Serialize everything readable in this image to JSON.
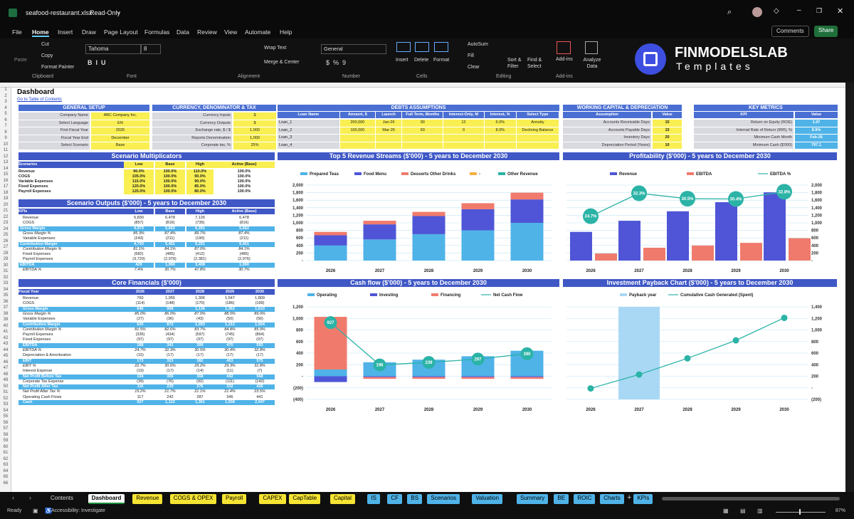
{
  "window": {
    "file": "seafood-restaurant.xlsx",
    "mode": "Read-Only"
  },
  "menu": [
    "File",
    "Home",
    "Insert",
    "Draw",
    "Page Layout",
    "Formulas",
    "Data",
    "Review",
    "View",
    "Automate",
    "Help"
  ],
  "comments_label": "Comments",
  "share_label": "Share",
  "ribbon": {
    "paste": "Paste",
    "cut": "Cut",
    "copy": "Copy",
    "format_painter": "Format Painter",
    "clipboard": "Clipboard",
    "font_name": "Tahoma",
    "font_size": "8",
    "font": "Font",
    "wrap": "Wrap Text",
    "merge": "Merge & Center",
    "alignment": "Alignment",
    "number_format": "General",
    "number": "Number",
    "insert": "Insert",
    "delete": "Delete",
    "format": "Format",
    "cells": "Cells",
    "autosum": "AutoSum",
    "fill": "Fill",
    "clear": "Clear",
    "sort": "Sort & Filter",
    "find": "Find & Select",
    "editing": "Editing",
    "addins": "Add-ins",
    "analyze": "Analyze Data",
    "brand1": "FINMODELSLAB",
    "brand2": "Templates"
  },
  "sheet": {
    "title": "Dashboard",
    "link": "Go to Table of Contents"
  },
  "general": {
    "title": "GENERAL SETUP",
    "rows": [
      [
        "Company Name",
        "ABC Company Inc."
      ],
      [
        "Select Language",
        "EN"
      ],
      [
        "First Fiscal Year",
        "2026"
      ],
      [
        "Fiscal Year End",
        "December"
      ],
      [
        "Select Scenario",
        "Base"
      ]
    ]
  },
  "currency": {
    "title": "CURRENCY, DENOMINATOR & TAX",
    "rows": [
      [
        "Currency Inputs",
        "$"
      ],
      [
        "Currency Outputs",
        "$"
      ],
      [
        "Exchange rate, $ / $",
        "1.000"
      ],
      [
        "Reports Denomination",
        "1,000"
      ],
      [
        "Corporate tax, %",
        "25%"
      ]
    ]
  },
  "debts": {
    "title": "DEBTS ASSUMPTIONS",
    "headers": [
      "Loan Name",
      "Amount, $",
      "Launch",
      "Full Term, Months",
      "Interest-Only, M",
      "Interest, %",
      "Select Type"
    ],
    "rows": [
      [
        "Loan_1",
        "200,000",
        "Jan-26",
        "90",
        "12",
        "6.0%",
        "Annuity"
      ],
      [
        "Loan_2",
        "100,000",
        "Mar-26",
        "60",
        "0",
        "8.0%",
        "Declining Balance"
      ],
      [
        "Loan_3",
        "",
        "",
        "",
        "",
        "",
        ""
      ],
      [
        "Loan_4",
        "",
        "",
        "",
        "",
        "",
        ""
      ]
    ]
  },
  "wc": {
    "title": "WORKING CAPITAL & DEPRECIATION",
    "headers": [
      "Assumption",
      "Value"
    ],
    "rows": [
      [
        "Accounts Receivable Days",
        "15"
      ],
      [
        "Accounts Payable Days",
        "15"
      ],
      [
        "Inventory Days",
        "20"
      ],
      [
        "Depreciation Period (Years)",
        "10"
      ]
    ]
  },
  "kpi": {
    "title": "KEY METRICS",
    "headers": [
      "KPI",
      "Value"
    ],
    "rows": [
      [
        "Return on Equity (ROE)",
        "1.97"
      ],
      [
        "Internal Rate of Return (IRR), %",
        "8.9%"
      ],
      [
        "Minimum Cash Month",
        "Feb-26"
      ],
      [
        "Minimum Cash ($'000)",
        "797.1"
      ]
    ]
  },
  "scen": {
    "title": "Scenario Multiplicators",
    "headers": [
      "Scenarios",
      "Low",
      "Base",
      "High",
      "Active (Base)"
    ],
    "rows": [
      [
        "Revenue",
        "90.0%",
        "100.0%",
        "110.0%",
        "100.0%"
      ],
      [
        "COGS",
        "105.0%",
        "100.0%",
        "90.0%",
        "100.0%"
      ],
      [
        "Variable Expenses",
        "115.0%",
        "100.0%",
        "90.0%",
        "100.0%"
      ],
      [
        "Fixed Expenses",
        "120.0%",
        "100.0%",
        "85.0%",
        "100.0%"
      ],
      [
        "Payroll Expenses",
        "125.0%",
        "100.0%",
        "80.0%",
        "100.0%"
      ]
    ]
  },
  "scenout": {
    "title": "Scenario Outputs ($'000) - 5 years to December 2030",
    "headers": [
      "KPIs",
      "Low",
      "Base",
      "High",
      "Active (Base)"
    ],
    "rows": [
      [
        "Revenue",
        "5,830",
        "6,478",
        "7,126",
        "6,478"
      ],
      [
        "COGS",
        "(857)",
        "(816)",
        "(735)",
        "(816)"
      ],
      [
        "Gross Margin",
        "4,973",
        "5,662",
        "6,391",
        "5,662"
      ],
      [
        "Gross Margin %",
        "85.3%",
        "87.4%",
        "89.7%",
        "87.4%"
      ],
      [
        "Variable Expenses",
        "(243)",
        "(211)",
        "(190)",
        "(211)"
      ],
      [
        "Contribution Margin",
        "4,730",
        "5,451",
        "6,201",
        "5,451"
      ],
      [
        "Contribution Margin %",
        "81.1%",
        "84.1%",
        "87.0%",
        "84.1%"
      ],
      [
        "Fixed Expenses",
        "(582)",
        "(485)",
        "(412)",
        "(485)"
      ],
      [
        "Payroll Expenses",
        "(3,720)",
        "(2,976)",
        "(2,381)",
        "(2,976)"
      ],
      [
        "EBITDA",
        "429",
        "1,990",
        "3,408",
        "1,990"
      ],
      [
        "EBITDA %",
        "7.4%",
        "30.7%",
        "47.8%",
        "30.7%"
      ]
    ]
  },
  "core": {
    "title": "Core Financials ($'000)",
    "headers": [
      "Fiscal Year",
      "2026",
      "2027",
      "2028",
      "2029",
      "2030"
    ],
    "rows": [
      [
        "Revenue",
        "760",
        "1,055",
        "1,306",
        "1,547",
        "1,809"
      ],
      [
        "COGS",
        "(114)",
        "(148)",
        "(170)",
        "(186)",
        "(199)"
      ],
      [
        "Gross Margin",
        "646",
        "908",
        "1,136",
        "1,362",
        "1,610"
      ],
      [
        "Gross Margin %",
        "85.0%",
        "86.0%",
        "87.0%",
        "88.0%",
        "89.0%"
      ],
      [
        "Variable Expenses",
        "(27)",
        "(36)",
        "(43)",
        "(50)",
        "(56)"
      ],
      [
        "Contribution Margin",
        "620",
        "872",
        "1,093",
        "1,312",
        "1,554"
      ],
      [
        "Contribution Margin %",
        "81.5%",
        "82.6%",
        "83.7%",
        "84.8%",
        "85.9%"
      ],
      [
        "Payroll Expenses",
        "(335)",
        "(434)",
        "(597)",
        "(745)",
        "(864)"
      ],
      [
        "Fixed Expenses",
        "(97)",
        "(97)",
        "(97)",
        "(97)",
        "(97)"
      ],
      [
        "EBITDA",
        "188",
        "341",
        "399",
        "470",
        "593"
      ],
      [
        "EBITDA %",
        "24.7%",
        "32.3%",
        "30.5%",
        "30.4%",
        "32.8%"
      ],
      [
        "Depreciation & Amortization",
        "(15)",
        "(17)",
        "(17)",
        "(17)",
        "(17)"
      ],
      [
        "EBIT",
        "173",
        "323",
        "382",
        "453",
        "575"
      ],
      [
        "EBIT %",
        "22.7%",
        "30.6%",
        "29.2%",
        "29.3%",
        "31.8%"
      ],
      [
        "Interest Expense",
        "(19)",
        "(17)",
        "(14)",
        "(11)",
        "(7)"
      ],
      [
        "Net Profit Before Tax",
        "154",
        "306",
        "368",
        "442",
        "568"
      ],
      [
        "Corporate Tax Expense",
        "(39)",
        "(76)",
        "(92)",
        "(111)",
        "(142)"
      ],
      [
        "Net Profit After Tax",
        "116",
        "229",
        "276",
        "332",
        "426"
      ],
      [
        "Net Profit After Tax %",
        "15.2%",
        "21.7%",
        "21.1%",
        "21.4%",
        "23.5%"
      ],
      [
        "Operating Cash Flows",
        "117",
        "242",
        "287",
        "346",
        "441"
      ],
      [
        "Cash",
        "927",
        "1,122",
        "1,361",
        "1,658",
        "2,047"
      ]
    ]
  },
  "chart_data": [
    {
      "type": "bar",
      "title": "Top 5 Revenue Streams ($'000) - 5 years to December 2030",
      "categories": [
        "2026",
        "2027",
        "2028",
        "2029",
        "2030"
      ],
      "series": [
        {
          "name": "Prepared Teas",
          "values": [
            400,
            560,
            700,
            800,
            1000
          ]
        },
        {
          "name": "Food Menu",
          "values": [
            270,
            400,
            480,
            560,
            620
          ]
        },
        {
          "name": "Desserts Other Drinks",
          "values": [
            90,
            95,
            110,
            160,
            180
          ]
        },
        {
          "name": "-",
          "values": [
            0,
            0,
            0,
            0,
            0
          ]
        },
        {
          "name": "Other Revenue",
          "values": [
            0,
            0,
            0,
            0,
            0
          ]
        }
      ],
      "ylim": [
        0,
        2000
      ],
      "yticks": [
        "2,000",
        "1,800",
        "1,600",
        "1,400",
        "1,200",
        "1,000",
        "800",
        "600",
        "400",
        "200",
        "-"
      ]
    },
    {
      "type": "bar",
      "title": "Profitability ($'000) - 5 years to December 2030",
      "categories": [
        "2026",
        "2027",
        "2028",
        "2029",
        "2030"
      ],
      "series": [
        {
          "name": "Revenue",
          "values": [
            760,
            1055,
            1306,
            1547,
            1809
          ]
        },
        {
          "name": "EBITDA",
          "values": [
            188,
            341,
            399,
            470,
            593
          ]
        },
        {
          "name": "EBITDA %",
          "values": [
            24.7,
            32.3,
            30.5,
            30.4,
            32.8
          ]
        }
      ],
      "labels": [
        "24.7%",
        "32.3%",
        "30.5%",
        "30.4%",
        "32.8%"
      ],
      "ylim": [
        0,
        2000
      ],
      "yticks": [
        "2,000",
        "1,800",
        "1,600",
        "1,400",
        "1,200",
        "1,000",
        "800",
        "600",
        "400",
        "200",
        "-"
      ]
    },
    {
      "type": "bar",
      "title": "Cash flow ($'000) - 5 years to December 2030",
      "categories": [
        "2026",
        "2027",
        "2028",
        "2029",
        "2030"
      ],
      "series": [
        {
          "name": "Operating",
          "values": [
            117,
            242,
            287,
            346,
            441
          ]
        },
        {
          "name": "Investing",
          "values": [
            -100,
            -15,
            -15,
            -15,
            -15
          ]
        },
        {
          "name": "Financing",
          "values": [
            910,
            -30,
            -30,
            -30,
            -30
          ]
        },
        {
          "name": "Net Cash Flow",
          "values": [
            927,
            196,
            239,
            297,
            390
          ]
        }
      ],
      "labels": [
        "927",
        "196",
        "239",
        "297",
        "390"
      ],
      "ylim": [
        -400,
        1200
      ],
      "yticks": [
        "1,200",
        "1,000",
        "800",
        "600",
        "400",
        "200",
        "-",
        "(200)",
        "(400)"
      ]
    },
    {
      "type": "line",
      "title": "Investment Payback Chart ($'000) - 5 years to December 2030",
      "categories": [
        "2026",
        "2027",
        "2028",
        "2029",
        "2030"
      ],
      "series": [
        {
          "name": "Payback year",
          "values": [
            0,
            1,
            0,
            0,
            0
          ]
        },
        {
          "name": "Cumulative Cash Generated (Spent)",
          "values": [
            -10,
            230,
            510,
            820,
            1210
          ]
        }
      ],
      "ylim": [
        -200,
        1400
      ],
      "yticks": [
        "1,400",
        "1,200",
        "1,000",
        "800",
        "600",
        "400",
        "200",
        "-",
        "(200)"
      ]
    }
  ],
  "tabs": [
    [
      "Contents",
      "w"
    ],
    [
      "Dashboard",
      "a"
    ],
    [
      "Revenue",
      "y"
    ],
    [
      "COGS & OPEX",
      "y"
    ],
    [
      "Payroll",
      "y"
    ],
    [
      "CAPEX",
      "y"
    ],
    [
      "CapTable",
      "y"
    ],
    [
      "Capital",
      "y"
    ],
    [
      "IS",
      "b"
    ],
    [
      "CF",
      "b"
    ],
    [
      "BS",
      "b"
    ],
    [
      "Scenarios",
      "b"
    ],
    [
      "Valuation",
      "b"
    ],
    [
      "Summary",
      "b"
    ],
    [
      "BE",
      "b"
    ],
    [
      "ROIC",
      "b"
    ],
    [
      "Charts",
      "b"
    ],
    [
      "KPIs",
      "b"
    ]
  ],
  "status": {
    "ready": "Ready",
    "accessibility": "Accessibility: Investigate",
    "zoom": "87%"
  },
  "colors": {
    "blue": "#4f55d6",
    "sky": "#4fb3e8",
    "salmon": "#f07b6c",
    "teal": "#2bb3a6"
  }
}
